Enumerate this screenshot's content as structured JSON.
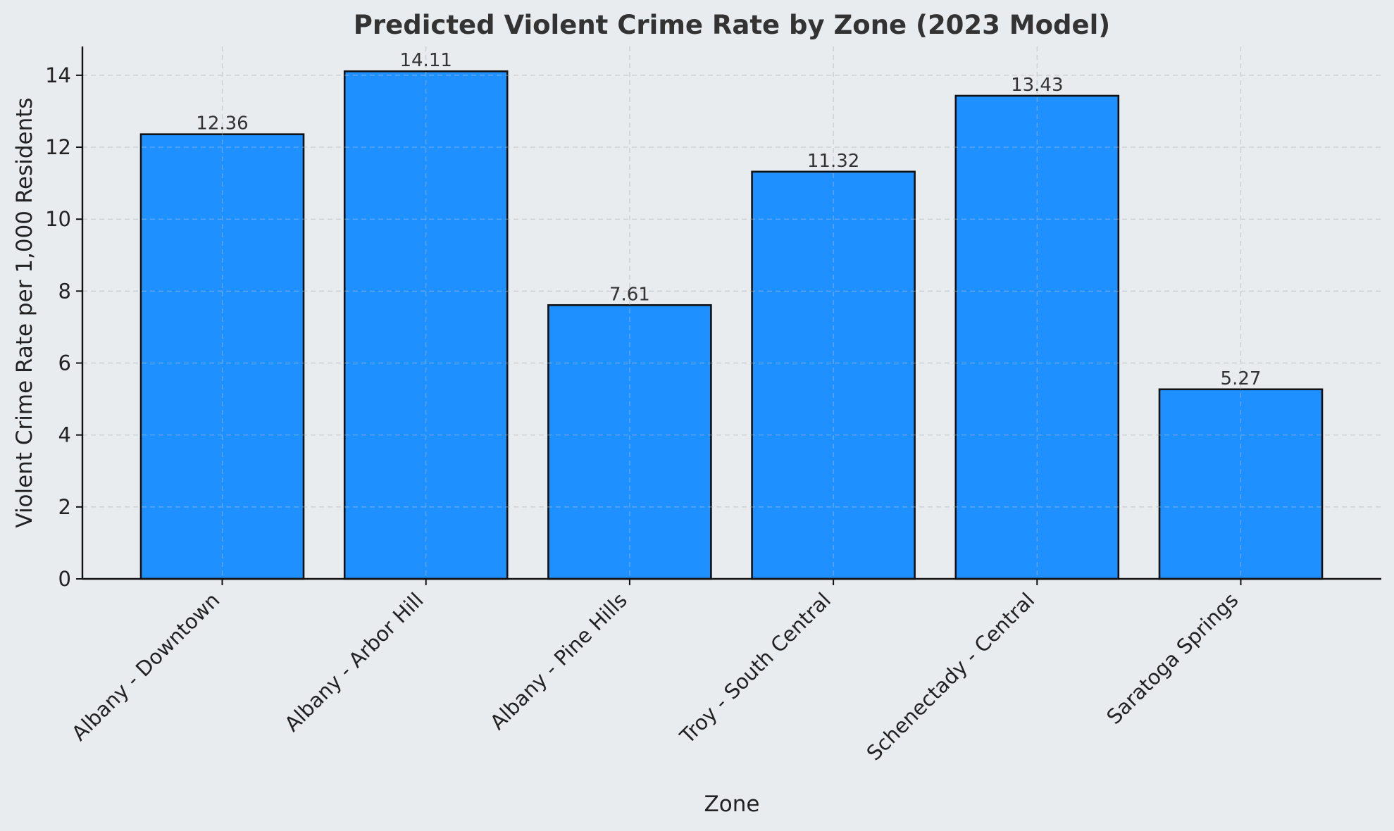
{
  "chart_data": {
    "type": "bar",
    "title": "Predicted Violent Crime Rate by Zone (2023 Model)",
    "xlabel": "Zone",
    "ylabel": "Violent Crime Rate per 1,000 Residents",
    "categories": [
      "Albany - Downtown",
      "Albany - Arbor Hill",
      "Albany - Pine Hills",
      "Troy - South Central",
      "Schenectady - Central",
      "Saratoga Springs"
    ],
    "values": [
      12.36,
      14.11,
      7.61,
      11.32,
      13.43,
      5.27
    ],
    "data_labels": [
      "12.36",
      "14.11",
      "7.61",
      "11.32",
      "13.43",
      "5.27"
    ],
    "ylim": [
      0,
      14.8
    ],
    "yticks": [
      0,
      2,
      4,
      6,
      8,
      10,
      12,
      14
    ],
    "grid": true,
    "bar_color": "#1e90ff",
    "bar_edge_color": "#111111",
    "background_color": "#e8ecef"
  }
}
